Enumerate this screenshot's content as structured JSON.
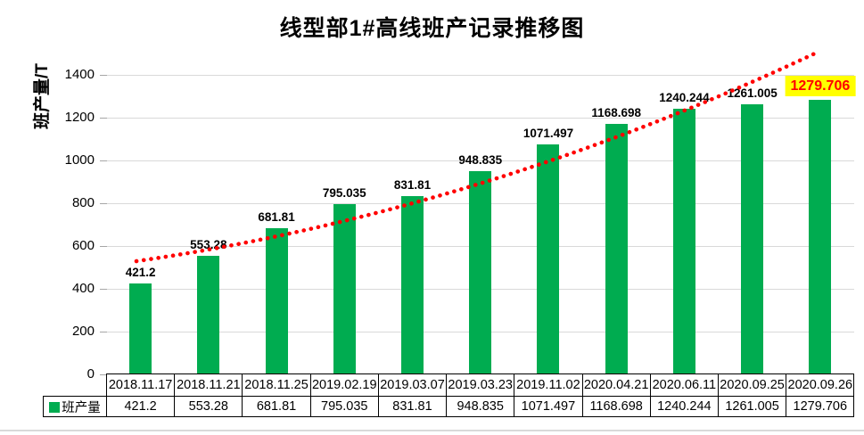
{
  "title": "线型部1#高线班产记录推移图",
  "y_axis": {
    "label": "班产量/T",
    "tick_labels": [
      "0",
      "200",
      "400",
      "600",
      "800",
      "1000",
      "1200",
      "1400"
    ]
  },
  "legend": {
    "label": "班产量",
    "swatch_color": "#00AC50"
  },
  "chart_data": {
    "type": "bar",
    "title": "线型部1#高线班产记录推移图",
    "xlabel": "",
    "ylabel": "班产量/T",
    "categories": [
      "2018.11.17",
      "2018.11.21",
      "2018.11.25",
      "2019.02.19",
      "2019.03.07",
      "2019.03.23",
      "2019.11.02",
      "2020.04.21",
      "2020.06.11",
      "2020.09.25",
      "2020.09.26"
    ],
    "series": [
      {
        "name": "班产量",
        "values": [
          421.2,
          553.28,
          681.81,
          795.035,
          831.81,
          948.835,
          1071.497,
          1168.698,
          1240.244,
          1261.005,
          1279.706
        ]
      }
    ],
    "value_labels": [
      "421.2",
      "553.28",
      "681.81",
      "795.035",
      "831.81",
      "948.835",
      "1071.497",
      "1168.698",
      "1240.244",
      "1261.005",
      "1279.706"
    ],
    "ylim": [
      0,
      1400
    ],
    "ytick_step": 200,
    "grid": true,
    "legend_position": "bottom-left-table-cell",
    "bar_color": "#00AC50",
    "trendline": {
      "style": "dotted",
      "color": "#FF0000",
      "shape": "upward-curved"
    },
    "highlighted_label": {
      "text": "1279.706",
      "background": "#FFFF00",
      "color": "#FF0000"
    }
  },
  "colors": {
    "bar": "#00AC50",
    "trendline": "#FF0000",
    "highlight_background": "#FFFF00",
    "highlight_text": "#FF0000",
    "gridline": "#D9D9D9",
    "table_border": "#000000"
  }
}
